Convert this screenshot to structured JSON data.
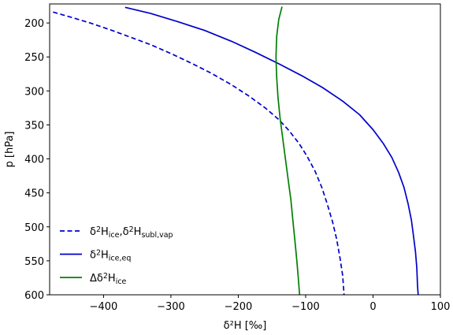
{
  "chart_data": {
    "type": "line",
    "xlabel": "δ²H [‰]",
    "ylabel": "p [hPa]",
    "xlim": [
      -480,
      100
    ],
    "ylim": [
      600,
      172
    ],
    "y_inverted": true,
    "grid": false,
    "legend_position": "lower-left",
    "x_ticks": [
      -400,
      -300,
      -200,
      -100,
      0,
      100
    ],
    "y_ticks": [
      200,
      250,
      300,
      350,
      400,
      450,
      500,
      550,
      600
    ],
    "series": [
      {
        "name": "δ²H_ice, δ²H_subl,vap",
        "color": "#0000cc",
        "style": "dashed",
        "points": [
          [
            -475,
            184
          ],
          [
            -450,
            191
          ],
          [
            -420,
            200
          ],
          [
            -390,
            210
          ],
          [
            -360,
            221
          ],
          [
            -330,
            232
          ],
          [
            -300,
            245
          ],
          [
            -270,
            259
          ],
          [
            -240,
            274
          ],
          [
            -210,
            291
          ],
          [
            -185,
            307
          ],
          [
            -160,
            325
          ],
          [
            -140,
            342
          ],
          [
            -125,
            358
          ],
          [
            -110,
            377
          ],
          [
            -98,
            396
          ],
          [
            -86,
            418
          ],
          [
            -76,
            442
          ],
          [
            -68,
            466
          ],
          [
            -60,
            493
          ],
          [
            -54,
            518
          ],
          [
            -49,
            546
          ],
          [
            -45,
            572
          ],
          [
            -43,
            600
          ]
        ]
      },
      {
        "name": "δ²H_ice,eq",
        "color": "#0000cc",
        "style": "solid",
        "points": [
          [
            -368,
            177
          ],
          [
            -330,
            186
          ],
          [
            -290,
            198
          ],
          [
            -250,
            211
          ],
          [
            -210,
            227
          ],
          [
            -175,
            243
          ],
          [
            -140,
            260
          ],
          [
            -105,
            278
          ],
          [
            -75,
            295
          ],
          [
            -45,
            315
          ],
          [
            -20,
            335
          ],
          [
            0,
            357
          ],
          [
            15,
            377
          ],
          [
            28,
            398
          ],
          [
            38,
            420
          ],
          [
            46,
            442
          ],
          [
            52,
            466
          ],
          [
            57,
            490
          ],
          [
            60,
            513
          ],
          [
            63,
            537
          ],
          [
            65,
            561
          ],
          [
            66,
            585
          ],
          [
            67,
            600
          ]
        ]
      },
      {
        "name": "Δδ²H_ice",
        "color": "#008000",
        "style": "solid",
        "points": [
          [
            -135,
            176
          ],
          [
            -140,
            195
          ],
          [
            -143,
            220
          ],
          [
            -144,
            250
          ],
          [
            -143,
            280
          ],
          [
            -141,
            310
          ],
          [
            -138,
            340
          ],
          [
            -134,
            370
          ],
          [
            -130,
            400
          ],
          [
            -126,
            430
          ],
          [
            -122,
            460
          ],
          [
            -119,
            490
          ],
          [
            -116,
            520
          ],
          [
            -113,
            550
          ],
          [
            -111,
            575
          ],
          [
            -109,
            600
          ]
        ]
      }
    ]
  }
}
